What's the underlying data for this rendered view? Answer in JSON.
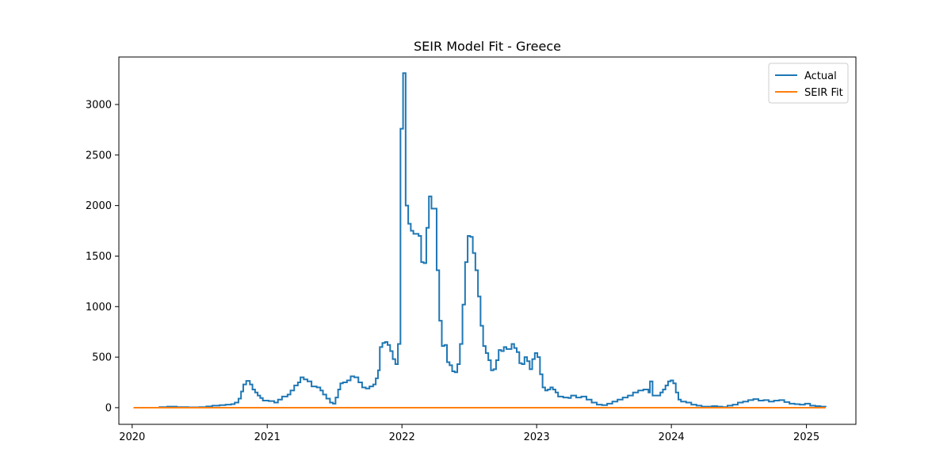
{
  "chart_data": {
    "type": "line",
    "title": "SEIR Model Fit - Greece",
    "xlabel": "",
    "ylabel": "",
    "x_ticks": [
      "2020",
      "2021",
      "2022",
      "2023",
      "2024",
      "2025"
    ],
    "y_ticks": [
      "0",
      "500",
      "1000",
      "1500",
      "2000",
      "2500",
      "3000"
    ],
    "xlim": [
      "2019-11-26",
      "2025-05-15"
    ],
    "ylim": [
      -165,
      3470
    ],
    "grid": false,
    "legend_position": "top-right",
    "series": [
      {
        "name": "Actual",
        "color": "#1f77b4",
        "step": true,
        "points": [
          [
            "2020-01-05",
            0
          ],
          [
            "2020-03-01",
            0
          ],
          [
            "2020-03-15",
            5
          ],
          [
            "2020-04-05",
            10
          ],
          [
            "2020-05-01",
            5
          ],
          [
            "2020-06-01",
            3
          ],
          [
            "2020-07-01",
            5
          ],
          [
            "2020-07-20",
            12
          ],
          [
            "2020-08-05",
            20
          ],
          [
            "2020-08-25",
            25
          ],
          [
            "2020-09-10",
            30
          ],
          [
            "2020-09-25",
            35
          ],
          [
            "2020-10-05",
            50
          ],
          [
            "2020-10-15",
            90
          ],
          [
            "2020-10-22",
            160
          ],
          [
            "2020-10-28",
            230
          ],
          [
            "2020-11-05",
            265
          ],
          [
            "2020-11-15",
            230
          ],
          [
            "2020-11-22",
            180
          ],
          [
            "2020-11-29",
            150
          ],
          [
            "2020-12-06",
            120
          ],
          [
            "2020-12-13",
            95
          ],
          [
            "2020-12-20",
            70
          ],
          [
            "2021-01-05",
            65
          ],
          [
            "2021-01-20",
            50
          ],
          [
            "2021-01-30",
            80
          ],
          [
            "2021-02-10",
            110
          ],
          [
            "2021-02-25",
            130
          ],
          [
            "2021-03-05",
            170
          ],
          [
            "2021-03-15",
            220
          ],
          [
            "2021-03-25",
            250
          ],
          [
            "2021-04-01",
            300
          ],
          [
            "2021-04-10",
            280
          ],
          [
            "2021-04-20",
            260
          ],
          [
            "2021-05-01",
            210
          ],
          [
            "2021-05-15",
            200
          ],
          [
            "2021-05-25",
            170
          ],
          [
            "2021-06-01",
            130
          ],
          [
            "2021-06-10",
            90
          ],
          [
            "2021-06-20",
            50
          ],
          [
            "2021-06-28",
            40
          ],
          [
            "2021-07-05",
            100
          ],
          [
            "2021-07-12",
            180
          ],
          [
            "2021-07-18",
            240
          ],
          [
            "2021-07-25",
            250
          ],
          [
            "2021-08-05",
            270
          ],
          [
            "2021-08-15",
            310
          ],
          [
            "2021-08-25",
            300
          ],
          [
            "2021-09-05",
            250
          ],
          [
            "2021-09-15",
            200
          ],
          [
            "2021-09-25",
            190
          ],
          [
            "2021-10-05",
            210
          ],
          [
            "2021-10-15",
            230
          ],
          [
            "2021-10-22",
            290
          ],
          [
            "2021-10-28",
            370
          ],
          [
            "2021-11-02",
            600
          ],
          [
            "2021-11-09",
            640
          ],
          [
            "2021-11-16",
            650
          ],
          [
            "2021-11-23",
            620
          ],
          [
            "2021-11-30",
            560
          ],
          [
            "2021-12-07",
            480
          ],
          [
            "2021-12-14",
            430
          ],
          [
            "2021-12-21",
            630
          ],
          [
            "2021-12-28",
            2760
          ],
          [
            "2022-01-04",
            3310
          ],
          [
            "2022-01-11",
            2000
          ],
          [
            "2022-01-18",
            1820
          ],
          [
            "2022-01-25",
            1750
          ],
          [
            "2022-02-01",
            1720
          ],
          [
            "2022-02-08",
            1720
          ],
          [
            "2022-02-15",
            1700
          ],
          [
            "2022-02-22",
            1440
          ],
          [
            "2022-03-01",
            1430
          ],
          [
            "2022-03-08",
            1780
          ],
          [
            "2022-03-15",
            2090
          ],
          [
            "2022-03-22",
            1970
          ],
          [
            "2022-03-29",
            1970
          ],
          [
            "2022-04-05",
            1360
          ],
          [
            "2022-04-12",
            860
          ],
          [
            "2022-04-19",
            610
          ],
          [
            "2022-04-26",
            620
          ],
          [
            "2022-05-03",
            450
          ],
          [
            "2022-05-10",
            420
          ],
          [
            "2022-05-17",
            360
          ],
          [
            "2022-05-24",
            350
          ],
          [
            "2022-05-31",
            430
          ],
          [
            "2022-06-07",
            630
          ],
          [
            "2022-06-14",
            1020
          ],
          [
            "2022-06-21",
            1440
          ],
          [
            "2022-06-28",
            1700
          ],
          [
            "2022-07-05",
            1690
          ],
          [
            "2022-07-12",
            1530
          ],
          [
            "2022-07-19",
            1360
          ],
          [
            "2022-07-26",
            1100
          ],
          [
            "2022-08-02",
            810
          ],
          [
            "2022-08-09",
            610
          ],
          [
            "2022-08-16",
            540
          ],
          [
            "2022-08-23",
            470
          ],
          [
            "2022-08-30",
            370
          ],
          [
            "2022-09-06",
            380
          ],
          [
            "2022-09-13",
            470
          ],
          [
            "2022-09-20",
            570
          ],
          [
            "2022-09-27",
            560
          ],
          [
            "2022-10-04",
            600
          ],
          [
            "2022-10-11",
            580
          ],
          [
            "2022-10-18",
            580
          ],
          [
            "2022-10-25",
            630
          ],
          [
            "2022-11-01",
            590
          ],
          [
            "2022-11-08",
            550
          ],
          [
            "2022-11-15",
            440
          ],
          [
            "2022-11-22",
            430
          ],
          [
            "2022-11-29",
            500
          ],
          [
            "2022-12-06",
            460
          ],
          [
            "2022-12-13",
            380
          ],
          [
            "2022-12-20",
            480
          ],
          [
            "2022-12-27",
            540
          ],
          [
            "2023-01-03",
            500
          ],
          [
            "2023-01-10",
            330
          ],
          [
            "2023-01-17",
            200
          ],
          [
            "2023-01-24",
            170
          ],
          [
            "2023-01-31",
            180
          ],
          [
            "2023-02-07",
            200
          ],
          [
            "2023-02-14",
            180
          ],
          [
            "2023-02-21",
            150
          ],
          [
            "2023-02-28",
            110
          ],
          [
            "2023-03-14",
            100
          ],
          [
            "2023-03-28",
            95
          ],
          [
            "2023-04-04",
            120
          ],
          [
            "2023-04-18",
            100
          ],
          [
            "2023-05-02",
            110
          ],
          [
            "2023-05-16",
            80
          ],
          [
            "2023-05-30",
            50
          ],
          [
            "2023-06-13",
            30
          ],
          [
            "2023-06-27",
            25
          ],
          [
            "2023-07-11",
            40
          ],
          [
            "2023-07-25",
            60
          ],
          [
            "2023-08-08",
            80
          ],
          [
            "2023-08-22",
            100
          ],
          [
            "2023-09-05",
            120
          ],
          [
            "2023-09-19",
            150
          ],
          [
            "2023-10-03",
            170
          ],
          [
            "2023-10-17",
            180
          ],
          [
            "2023-10-31",
            150
          ],
          [
            "2023-11-04",
            260
          ],
          [
            "2023-11-11",
            120
          ],
          [
            "2023-11-25",
            120
          ],
          [
            "2023-12-02",
            150
          ],
          [
            "2023-12-09",
            180
          ],
          [
            "2023-12-16",
            220
          ],
          [
            "2023-12-23",
            260
          ],
          [
            "2023-12-30",
            270
          ],
          [
            "2024-01-06",
            240
          ],
          [
            "2024-01-13",
            150
          ],
          [
            "2024-01-20",
            80
          ],
          [
            "2024-01-27",
            60
          ],
          [
            "2024-02-10",
            50
          ],
          [
            "2024-02-24",
            30
          ],
          [
            "2024-03-09",
            20
          ],
          [
            "2024-03-23",
            10
          ],
          [
            "2024-04-06",
            10
          ],
          [
            "2024-04-20",
            15
          ],
          [
            "2024-05-04",
            10
          ],
          [
            "2024-05-18",
            5
          ],
          [
            "2024-06-01",
            20
          ],
          [
            "2024-06-15",
            30
          ],
          [
            "2024-06-29",
            50
          ],
          [
            "2024-07-13",
            60
          ],
          [
            "2024-07-27",
            75
          ],
          [
            "2024-08-10",
            85
          ],
          [
            "2024-08-24",
            70
          ],
          [
            "2024-09-07",
            75
          ],
          [
            "2024-09-21",
            60
          ],
          [
            "2024-10-05",
            70
          ],
          [
            "2024-10-19",
            75
          ],
          [
            "2024-11-02",
            55
          ],
          [
            "2024-11-16",
            40
          ],
          [
            "2024-11-30",
            35
          ],
          [
            "2024-12-14",
            30
          ],
          [
            "2024-12-28",
            40
          ],
          [
            "2025-01-11",
            20
          ],
          [
            "2025-01-25",
            15
          ],
          [
            "2025-02-08",
            10
          ],
          [
            "2025-02-22",
            5
          ]
        ]
      },
      {
        "name": "SEIR Fit",
        "color": "#ff7f0e",
        "step": false,
        "points": [
          [
            "2020-01-05",
            0
          ],
          [
            "2025-02-22",
            0
          ]
        ]
      }
    ]
  }
}
